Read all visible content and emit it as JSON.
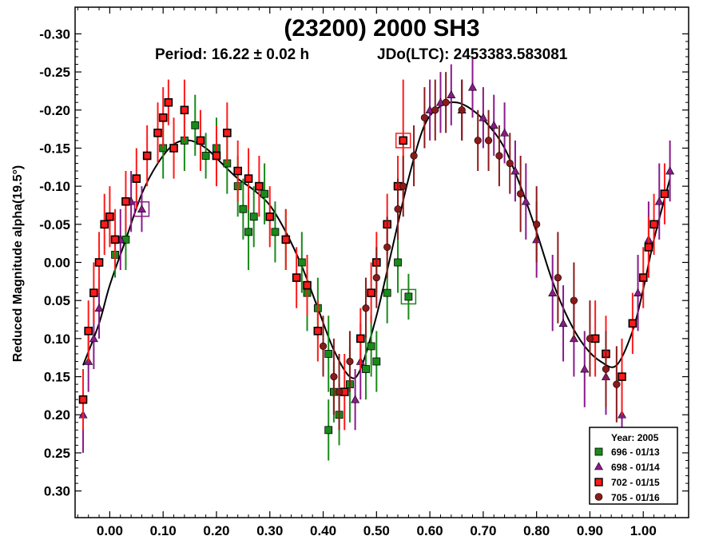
{
  "chart_data": {
    "type": "scatter",
    "title": "(23200) 2000 SH3",
    "period_text": "Period: 16.22 ± 0.02 h",
    "epoch_text": "JDo(LTC): 2453383.583081",
    "xlabel": "",
    "ylabel": "Reduced Magnitude alpha(19.5°)",
    "xlim": [
      -0.065,
      1.085
    ],
    "ylim": [
      -0.335,
      0.335
    ],
    "y_inverted": true,
    "x_ticks": [
      0.0,
      0.1,
      0.2,
      0.3,
      0.4,
      0.5,
      0.6,
      0.7,
      0.8,
      0.9,
      1.0
    ],
    "x_tick_labels": [
      "0.00",
      "0.10",
      "0.20",
      "0.30",
      "0.40",
      "0.50",
      "0.60",
      "0.70",
      "0.80",
      "0.90",
      "1.00"
    ],
    "y_ticks": [
      -0.3,
      -0.25,
      -0.2,
      -0.15,
      -0.1,
      -0.05,
      0.0,
      0.05,
      0.1,
      0.15,
      0.2,
      0.25,
      0.3
    ],
    "y_tick_labels": [
      "-0.30",
      "-0.25",
      "-0.20",
      "-0.15",
      "-0.10",
      "-0.05",
      "0.00",
      "0.05",
      "0.10",
      "0.15",
      "0.20",
      "0.25",
      "0.30"
    ],
    "legend": {
      "title": "Year: 2005",
      "position": "bottom-right",
      "entries": [
        {
          "label": "696 - 01/13",
          "color": "#1a8a1a",
          "marker": "square"
        },
        {
          "label": "698 - 01/14",
          "color": "#8a1a8a",
          "marker": "triangle"
        },
        {
          "label": "702 - 01/15",
          "color": "#ff1a1a",
          "marker": "square-outlined"
        },
        {
          "label": "705 - 01/16",
          "color": "#8b1a1a",
          "marker": "circle"
        }
      ]
    },
    "fit_curve": {
      "x": [
        -0.05,
        -0.02,
        0.0,
        0.03,
        0.06,
        0.09,
        0.12,
        0.15,
        0.18,
        0.21,
        0.24,
        0.27,
        0.3,
        0.33,
        0.36,
        0.39,
        0.42,
        0.45,
        0.47,
        0.5,
        0.53,
        0.56,
        0.59,
        0.62,
        0.65,
        0.68,
        0.71,
        0.74,
        0.77,
        0.8,
        0.83,
        0.86,
        0.89,
        0.92,
        0.95,
        0.98,
        1.0,
        1.02,
        1.05
      ],
      "y": [
        0.135,
        0.08,
        0.03,
        -0.03,
        -0.09,
        -0.13,
        -0.155,
        -0.16,
        -0.15,
        -0.13,
        -0.11,
        -0.095,
        -0.075,
        -0.04,
        0.005,
        0.06,
        0.115,
        0.15,
        0.14,
        0.07,
        -0.02,
        -0.11,
        -0.18,
        -0.205,
        -0.21,
        -0.2,
        -0.18,
        -0.15,
        -0.1,
        -0.04,
        0.025,
        0.075,
        0.11,
        0.13,
        0.135,
        0.09,
        0.035,
        -0.03,
        -0.11
      ]
    },
    "series": [
      {
        "name": "696 - 01/13",
        "color": "#1a8a1a",
        "marker": "square",
        "points": [
          {
            "x": 0.1,
            "y": -0.15,
            "err": 0.04
          },
          {
            "x": 0.14,
            "y": -0.16,
            "err": 0.04
          },
          {
            "x": 0.16,
            "y": -0.18,
            "err": 0.04
          },
          {
            "x": 0.18,
            "y": -0.14,
            "err": 0.03
          },
          {
            "x": 0.2,
            "y": -0.15,
            "err": 0.04
          },
          {
            "x": 0.22,
            "y": -0.13,
            "err": 0.04
          },
          {
            "x": 0.24,
            "y": -0.1,
            "err": 0.04
          },
          {
            "x": 0.25,
            "y": -0.07,
            "err": 0.04
          },
          {
            "x": 0.26,
            "y": -0.04,
            "err": 0.05
          },
          {
            "x": 0.27,
            "y": -0.06,
            "err": 0.04
          },
          {
            "x": 0.29,
            "y": -0.09,
            "err": 0.04
          },
          {
            "x": 0.31,
            "y": -0.04,
            "err": 0.04
          },
          {
            "x": 0.33,
            "y": -0.03,
            "err": 0.04
          },
          {
            "x": 0.36,
            "y": 0.0,
            "err": 0.04
          },
          {
            "x": 0.37,
            "y": 0.04,
            "err": 0.05
          },
          {
            "x": 0.39,
            "y": 0.06,
            "err": 0.04
          },
          {
            "x": 0.41,
            "y": 0.12,
            "err": 0.05
          },
          {
            "x": 0.42,
            "y": 0.17,
            "err": 0.04
          },
          {
            "x": 0.43,
            "y": 0.2,
            "err": 0.04
          },
          {
            "x": 0.45,
            "y": 0.16,
            "err": 0.05
          },
          {
            "x": 0.48,
            "y": 0.14,
            "err": 0.04
          },
          {
            "x": 0.5,
            "y": 0.13,
            "err": 0.04
          },
          {
            "x": 0.52,
            "y": 0.04,
            "err": 0.04
          },
          {
            "x": 0.54,
            "y": 0.0,
            "err": 0.04
          },
          {
            "x": 0.56,
            "y": 0.045,
            "err": 0.03
          },
          {
            "x": 0.41,
            "y": 0.22,
            "err": 0.04
          },
          {
            "x": 0.49,
            "y": 0.11,
            "err": 0.04
          },
          {
            "x": 0.01,
            "y": -0.01,
            "err": 0.03
          },
          {
            "x": 0.03,
            "y": -0.03,
            "err": 0.04
          }
        ]
      },
      {
        "name": "698 - 01/14",
        "color": "#8a1a8a",
        "marker": "triangle",
        "points": [
          {
            "x": -0.05,
            "y": 0.2,
            "err": 0.05
          },
          {
            "x": -0.04,
            "y": 0.13,
            "err": 0.04
          },
          {
            "x": -0.03,
            "y": 0.1,
            "err": 0.04
          },
          {
            "x": -0.02,
            "y": 0.06,
            "err": 0.04
          },
          {
            "x": 0.02,
            "y": -0.03,
            "err": 0.04
          },
          {
            "x": 0.04,
            "y": -0.08,
            "err": 0.04
          },
          {
            "x": 0.06,
            "y": -0.07,
            "err": 0.03
          },
          {
            "x": 0.46,
            "y": 0.18,
            "err": 0.04
          },
          {
            "x": 0.47,
            "y": 0.13,
            "err": 0.05
          },
          {
            "x": 0.6,
            "y": -0.2,
            "err": 0.04
          },
          {
            "x": 0.62,
            "y": -0.21,
            "err": 0.04
          },
          {
            "x": 0.64,
            "y": -0.22,
            "err": 0.04
          },
          {
            "x": 0.66,
            "y": -0.2,
            "err": 0.04
          },
          {
            "x": 0.68,
            "y": -0.23,
            "err": 0.04
          },
          {
            "x": 0.7,
            "y": -0.19,
            "err": 0.04
          },
          {
            "x": 0.72,
            "y": -0.18,
            "err": 0.04
          },
          {
            "x": 0.74,
            "y": -0.17,
            "err": 0.04
          },
          {
            "x": 0.76,
            "y": -0.12,
            "err": 0.04
          },
          {
            "x": 0.78,
            "y": -0.08,
            "err": 0.05
          },
          {
            "x": 0.8,
            "y": -0.03,
            "err": 0.05
          },
          {
            "x": 0.83,
            "y": 0.04,
            "err": 0.05
          },
          {
            "x": 0.85,
            "y": 0.08,
            "err": 0.05
          },
          {
            "x": 0.87,
            "y": 0.1,
            "err": 0.05
          },
          {
            "x": 0.89,
            "y": 0.14,
            "err": 0.05
          },
          {
            "x": 0.93,
            "y": 0.15,
            "err": 0.05
          },
          {
            "x": 0.96,
            "y": 0.2,
            "err": 0.05
          },
          {
            "x": 0.99,
            "y": 0.04,
            "err": 0.05
          },
          {
            "x": 1.01,
            "y": -0.03,
            "err": 0.05
          },
          {
            "x": 1.03,
            "y": -0.08,
            "err": 0.05
          },
          {
            "x": 1.05,
            "y": -0.12,
            "err": 0.04
          }
        ]
      },
      {
        "name": "702 - 01/15",
        "color": "#ff1a1a",
        "marker": "square-outlined",
        "points": [
          {
            "x": -0.05,
            "y": 0.18,
            "err": 0.04
          },
          {
            "x": -0.04,
            "y": 0.09,
            "err": 0.04
          },
          {
            "x": -0.03,
            "y": 0.04,
            "err": 0.04
          },
          {
            "x": -0.02,
            "y": 0.0,
            "err": 0.04
          },
          {
            "x": -0.01,
            "y": -0.05,
            "err": 0.04
          },
          {
            "x": 0.0,
            "y": -0.06,
            "err": 0.04
          },
          {
            "x": 0.01,
            "y": -0.03,
            "err": 0.04
          },
          {
            "x": 0.03,
            "y": -0.08,
            "err": 0.04
          },
          {
            "x": 0.05,
            "y": -0.11,
            "err": 0.04
          },
          {
            "x": 0.07,
            "y": -0.14,
            "err": 0.04
          },
          {
            "x": 0.09,
            "y": -0.17,
            "err": 0.04
          },
          {
            "x": 0.1,
            "y": -0.19,
            "err": 0.04
          },
          {
            "x": 0.11,
            "y": -0.21,
            "err": 0.03
          },
          {
            "x": 0.12,
            "y": -0.15,
            "err": 0.04
          },
          {
            "x": 0.14,
            "y": -0.2,
            "err": 0.04
          },
          {
            "x": 0.17,
            "y": -0.16,
            "err": 0.04
          },
          {
            "x": 0.2,
            "y": -0.14,
            "err": 0.04
          },
          {
            "x": 0.22,
            "y": -0.17,
            "err": 0.04
          },
          {
            "x": 0.24,
            "y": -0.12,
            "err": 0.04
          },
          {
            "x": 0.26,
            "y": -0.11,
            "err": 0.04
          },
          {
            "x": 0.28,
            "y": -0.1,
            "err": 0.04
          },
          {
            "x": 0.3,
            "y": -0.06,
            "err": 0.04
          },
          {
            "x": 0.33,
            "y": -0.03,
            "err": 0.04
          },
          {
            "x": 0.35,
            "y": 0.02,
            "err": 0.04
          },
          {
            "x": 0.37,
            "y": 0.03,
            "err": 0.04
          },
          {
            "x": 0.39,
            "y": 0.09,
            "err": 0.04
          },
          {
            "x": 0.44,
            "y": 0.17,
            "err": 0.05
          },
          {
            "x": 0.47,
            "y": 0.1,
            "err": 0.04
          },
          {
            "x": 0.49,
            "y": 0.04,
            "err": 0.04
          },
          {
            "x": 0.5,
            "y": 0.0,
            "err": 0.04
          },
          {
            "x": 0.52,
            "y": -0.05,
            "err": 0.04
          },
          {
            "x": 0.54,
            "y": -0.1,
            "err": 0.04
          },
          {
            "x": 0.55,
            "y": -0.16,
            "err": 0.08
          },
          {
            "x": 0.91,
            "y": 0.1,
            "err": 0.05
          },
          {
            "x": 0.93,
            "y": 0.12,
            "err": 0.05
          },
          {
            "x": 0.96,
            "y": 0.15,
            "err": 0.05
          },
          {
            "x": 0.98,
            "y": 0.08,
            "err": 0.04
          },
          {
            "x": 1.0,
            "y": 0.02,
            "err": 0.04
          },
          {
            "x": 1.01,
            "y": -0.02,
            "err": 0.04
          },
          {
            "x": 1.02,
            "y": -0.05,
            "err": 0.04
          },
          {
            "x": 1.04,
            "y": -0.09,
            "err": 0.04
          }
        ]
      },
      {
        "name": "705 - 01/16",
        "color": "#8b1a1a",
        "marker": "circle",
        "points": [
          {
            "x": 0.4,
            "y": 0.11,
            "err": 0.04
          },
          {
            "x": 0.42,
            "y": 0.15,
            "err": 0.05
          },
          {
            "x": 0.43,
            "y": 0.17,
            "err": 0.05
          },
          {
            "x": 0.45,
            "y": 0.13,
            "err": 0.04
          },
          {
            "x": 0.48,
            "y": 0.06,
            "err": 0.04
          },
          {
            "x": 0.5,
            "y": 0.02,
            "err": 0.04
          },
          {
            "x": 0.52,
            "y": -0.02,
            "err": 0.04
          },
          {
            "x": 0.54,
            "y": -0.07,
            "err": 0.04
          },
          {
            "x": 0.55,
            "y": -0.1,
            "err": 0.04
          },
          {
            "x": 0.57,
            "y": -0.14,
            "err": 0.04
          },
          {
            "x": 0.59,
            "y": -0.19,
            "err": 0.04
          },
          {
            "x": 0.61,
            "y": -0.2,
            "err": 0.04
          },
          {
            "x": 0.63,
            "y": -0.21,
            "err": 0.04
          },
          {
            "x": 0.66,
            "y": -0.2,
            "err": 0.04
          },
          {
            "x": 0.69,
            "y": -0.16,
            "err": 0.04
          },
          {
            "x": 0.71,
            "y": -0.16,
            "err": 0.04
          },
          {
            "x": 0.73,
            "y": -0.14,
            "err": 0.04
          },
          {
            "x": 0.75,
            "y": -0.13,
            "err": 0.04
          },
          {
            "x": 0.77,
            "y": -0.09,
            "err": 0.05
          },
          {
            "x": 0.8,
            "y": -0.05,
            "err": 0.05
          },
          {
            "x": 0.84,
            "y": 0.02,
            "err": 0.06
          },
          {
            "x": 0.87,
            "y": 0.05,
            "err": 0.05
          },
          {
            "x": 0.9,
            "y": 0.1,
            "err": 0.05
          },
          {
            "x": 0.93,
            "y": 0.14,
            "err": 0.05
          },
          {
            "x": 0.95,
            "y": 0.16,
            "err": 0.05
          }
        ]
      }
    ]
  }
}
